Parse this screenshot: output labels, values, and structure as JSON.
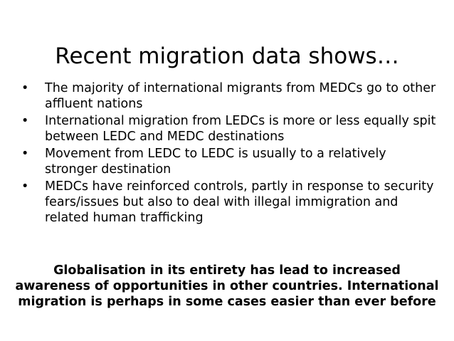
{
  "slide": {
    "title": "Recent migration data shows…",
    "bullet_symbol": "•",
    "bullets": [
      {
        "text": "The majority of international migrants from MEDCs go to other affluent nations"
      },
      {
        "text": "International migration from LEDCs is more or less equally spit between LEDC and MEDC destinations"
      },
      {
        "text": "Movement from LEDC to LEDC is usually to a relatively stronger destination"
      },
      {
        "text": "MEDCs have reinforced controls, partly in response to security fears/issues but also to deal with illegal immigration and related human trafficking"
      }
    ],
    "conclusion": "Globalisation in its entirety has lead to increased awareness of opportunities in other countries. International migration is perhaps in some cases easier than ever before"
  }
}
